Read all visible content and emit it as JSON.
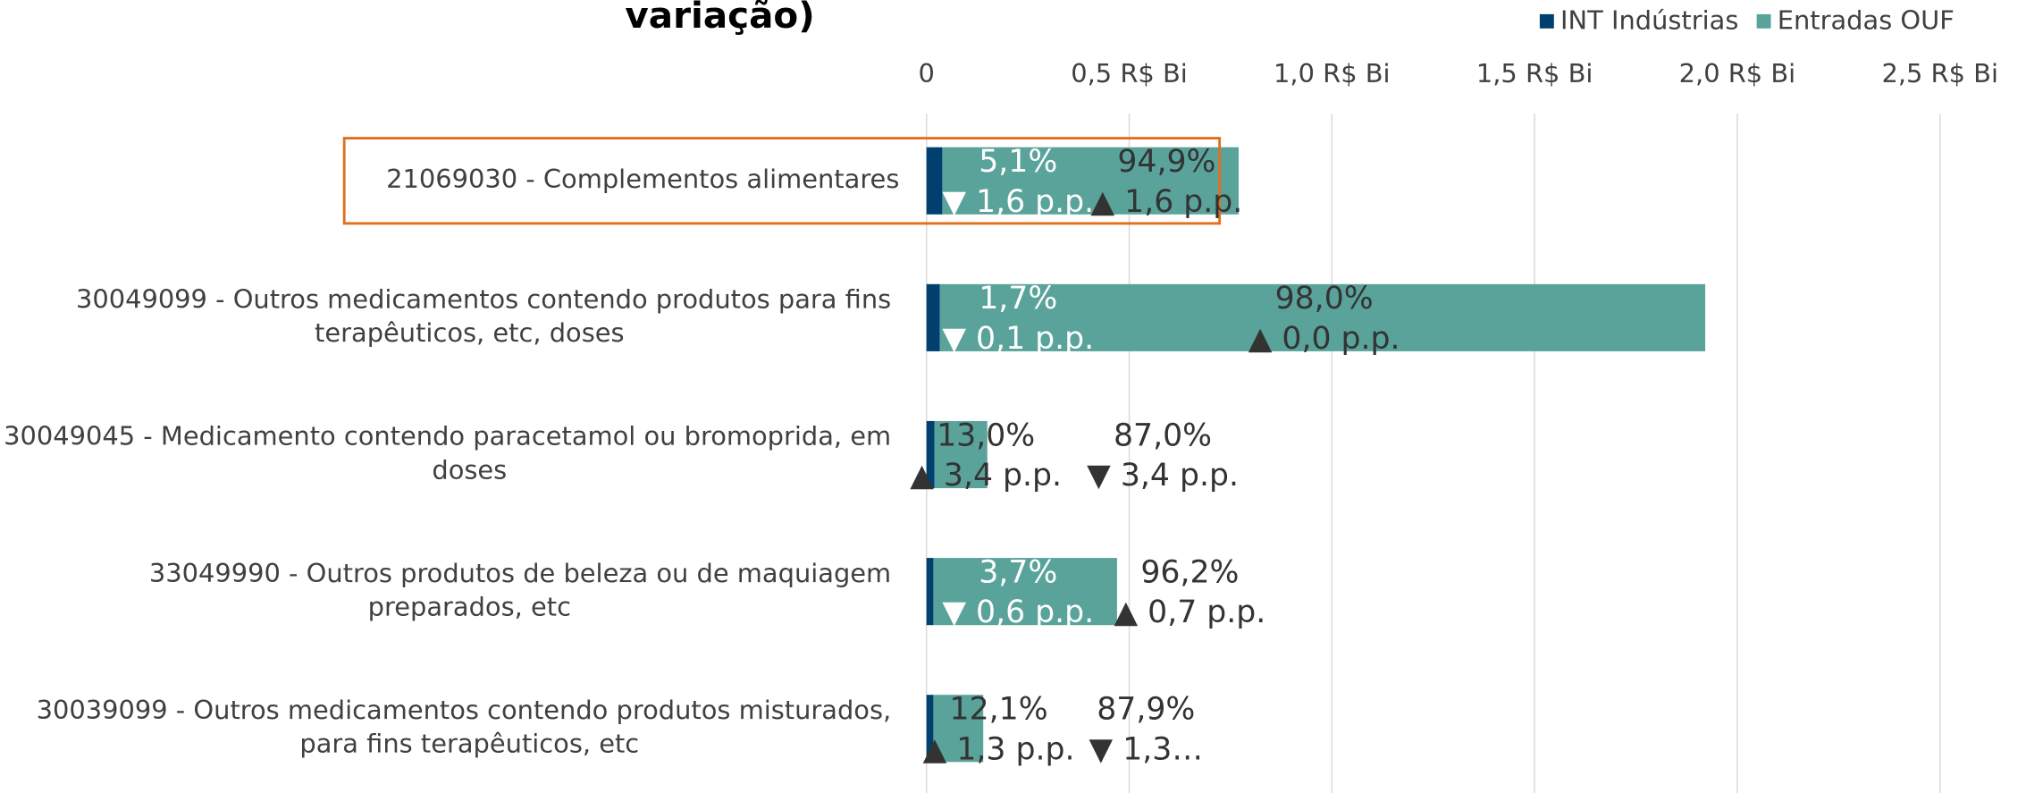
{
  "chart_data": {
    "type": "bar",
    "orientation": "horizontal",
    "stacked": true,
    "title": "variação)",
    "categories": [
      "21069030 - Complementos alimentares",
      "30049099 - Outros medicamentos contendo produtos para fins terapêuticos, etc, doses",
      "30049045 - Medicamento contendo paracetamol ou bromoprida, em doses",
      "33049990 - Outros produtos de beleza ou de maquiagem preparados, etc",
      "30039099 - Outros medicamentos contendo produtos misturados, para fins terapêuticos, etc"
    ],
    "series": [
      {
        "name": "INT Indústrias",
        "color": "#003f6e",
        "values": [
          0.039,
          0.033,
          0.0195,
          0.017,
          0.017
        ],
        "share_labels": [
          "5,1%",
          "1,7%",
          "13,0%",
          "3,7%",
          "12,1%"
        ],
        "change_labels": [
          "▼ 1,6 p.p.",
          "▼ 0,1 p.p.",
          "▲ 3,4 p.p.",
          "▼ 0,6 p.p.",
          "▲ 1,3 p.p."
        ]
      },
      {
        "name": "Entradas OUF",
        "color": "#5aa39a",
        "values": [
          0.731,
          1.888,
          0.1305,
          0.453,
          0.123
        ],
        "share_labels": [
          "94,9%",
          "98,0%",
          "87,0%",
          "96,2%",
          "87,9%"
        ],
        "change_labels": [
          "▲ 1,6 p.p.",
          "▲ 0,0 p.p.",
          "▼ 3,4 p.p.",
          "▲ 0,7 p.p.",
          "▼ 1,3…"
        ]
      }
    ],
    "xlim": [
      0,
      2.65
    ],
    "xticks": [
      0,
      {
        "value": 0.5,
        "label": "0,5 R$ Bi"
      },
      {
        "value": 1.0,
        "label": "1,0 R$ Bi"
      },
      {
        "value": 1.5,
        "label": "1,5 R$ Bi"
      },
      {
        "value": 2.0,
        "label": "2,0 R$ Bi"
      },
      {
        "value": 2.5,
        "label": "2,5 R$ Bi"
      }
    ],
    "grid": true,
    "legend": "top-right"
  }
}
